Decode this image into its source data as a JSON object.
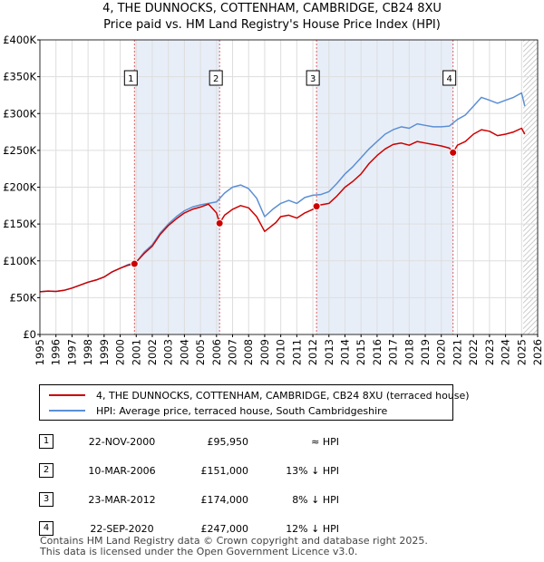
{
  "title": {
    "line1": "4, THE DUNNOCKS, COTTENHAM, CAMBRIDGE, CB24 8XU",
    "line2": "Price paid vs. HM Land Registry's House Price Index (HPI)"
  },
  "colors": {
    "price_line": "#cc0000",
    "hpi_line": "#5b8fd4",
    "marker_line": "#e06060",
    "shade": "#e8eef8",
    "grid": "#dddddd"
  },
  "legend": {
    "price_label": "4, THE DUNNOCKS, COTTENHAM, CAMBRIDGE, CB24 8XU (terraced house)",
    "hpi_label": "HPI: Average price, terraced house, South Cambridgeshire"
  },
  "sales": [
    {
      "num": "1",
      "date": "22-NOV-2000",
      "price": "£95,950",
      "hpi": "≈ HPI"
    },
    {
      "num": "2",
      "date": "10-MAR-2006",
      "price": "£151,000",
      "hpi": "13% ↓ HPI"
    },
    {
      "num": "3",
      "date": "23-MAR-2012",
      "price": "£174,000",
      "hpi": "8% ↓ HPI"
    },
    {
      "num": "4",
      "date": "22-SEP-2020",
      "price": "£247,000",
      "hpi": "12% ↓ HPI"
    }
  ],
  "footer": {
    "line1": "Contains HM Land Registry data © Crown copyright and database right 2025.",
    "line2": "This data is licensed under the Open Government Licence v3.0."
  },
  "chart_data": {
    "type": "line",
    "xlim": [
      1995,
      2026
    ],
    "ylim": [
      0,
      400000
    ],
    "x_ticks": [
      1995,
      1996,
      1997,
      1998,
      1999,
      2000,
      2001,
      2002,
      2003,
      2004,
      2005,
      2006,
      2007,
      2008,
      2009,
      2010,
      2011,
      2012,
      2013,
      2014,
      2015,
      2016,
      2017,
      2018,
      2019,
      2020,
      2021,
      2022,
      2023,
      2024,
      2025,
      2026
    ],
    "y_ticks": [
      {
        "value": 0,
        "label": "£0"
      },
      {
        "value": 50000,
        "label": "£50K"
      },
      {
        "value": 100000,
        "label": "£100K"
      },
      {
        "value": 150000,
        "label": "£150K"
      },
      {
        "value": 200000,
        "label": "£200K"
      },
      {
        "value": 250000,
        "label": "£250K"
      },
      {
        "value": 300000,
        "label": "£300K"
      },
      {
        "value": 350000,
        "label": "£350K"
      },
      {
        "value": 400000,
        "label": "£400K"
      }
    ],
    "shaded_ranges": [
      [
        2000.89,
        2006.19
      ],
      [
        2012.23,
        2020.73
      ]
    ],
    "future_hatch_from": 2025.1,
    "markers": [
      {
        "label": "1",
        "x": 2000.89,
        "y": 95950
      },
      {
        "label": "2",
        "x": 2006.19,
        "y": 151000
      },
      {
        "label": "3",
        "x": 2012.23,
        "y": 174000
      },
      {
        "label": "4",
        "x": 2020.73,
        "y": 247000
      }
    ],
    "series": [
      {
        "name": "4, THE DUNNOCKS, COTTENHAM, CAMBRIDGE, CB24 8XU (terraced house)",
        "color": "#cc0000",
        "x": [
          1995.0,
          1995.5,
          1996.0,
          1996.5,
          1997.0,
          1997.5,
          1998.0,
          1998.5,
          1999.0,
          1999.5,
          2000.0,
          2000.5,
          2000.89,
          2001.5,
          2002.0,
          2002.5,
          2003.0,
          2003.5,
          2004.0,
          2004.5,
          2005.0,
          2005.5,
          2006.0,
          2006.19,
          2006.5,
          2007.0,
          2007.5,
          2008.0,
          2008.5,
          2009.0,
          2009.3,
          2009.7,
          2010.0,
          2010.5,
          2011.0,
          2011.5,
          2012.0,
          2012.23,
          2012.5,
          2013.0,
          2013.5,
          2014.0,
          2014.5,
          2015.0,
          2015.5,
          2016.0,
          2016.5,
          2017.0,
          2017.5,
          2018.0,
          2018.5,
          2019.0,
          2019.5,
          2020.0,
          2020.5,
          2020.73,
          2021.0,
          2021.5,
          2022.0,
          2022.5,
          2023.0,
          2023.5,
          2024.0,
          2024.5,
          2025.0,
          2025.2
        ],
        "values": [
          58000,
          59000,
          58500,
          60000,
          63000,
          67000,
          71000,
          74000,
          78000,
          85000,
          90000,
          94000,
          95950,
          110000,
          120000,
          136000,
          148000,
          157000,
          165000,
          170000,
          173000,
          177000,
          165000,
          151000,
          162000,
          170000,
          175000,
          172000,
          160000,
          140000,
          145000,
          152000,
          160000,
          162000,
          158000,
          165000,
          170000,
          174000,
          176000,
          178000,
          188000,
          200000,
          208000,
          218000,
          232000,
          243000,
          252000,
          258000,
          260000,
          257000,
          262000,
          260000,
          258000,
          256000,
          253000,
          247000,
          257000,
          262000,
          272000,
          278000,
          276000,
          270000,
          272000,
          275000,
          280000,
          272000
        ]
      },
      {
        "name": "HPI: Average price, terraced house, South Cambridgeshire",
        "color": "#5b8fd4",
        "x": [
          1995.0,
          1995.5,
          1996.0,
          1996.5,
          1997.0,
          1997.5,
          1998.0,
          1998.5,
          1999.0,
          1999.5,
          2000.0,
          2000.5,
          2001.0,
          2001.5,
          2002.0,
          2002.5,
          2003.0,
          2003.5,
          2004.0,
          2004.5,
          2005.0,
          2005.5,
          2006.0,
          2006.5,
          2007.0,
          2007.5,
          2008.0,
          2008.5,
          2009.0,
          2009.5,
          2010.0,
          2010.5,
          2011.0,
          2011.5,
          2012.0,
          2012.5,
          2013.0,
          2013.5,
          2014.0,
          2014.5,
          2015.0,
          2015.5,
          2016.0,
          2016.5,
          2017.0,
          2017.5,
          2018.0,
          2018.5,
          2019.0,
          2019.5,
          2020.0,
          2020.5,
          2021.0,
          2021.5,
          2022.0,
          2022.5,
          2023.0,
          2023.5,
          2024.0,
          2024.5,
          2025.0,
          2025.2
        ],
        "values": [
          58000,
          59000,
          58500,
          60000,
          63000,
          67000,
          71000,
          74000,
          78000,
          85000,
          90000,
          95000,
          98000,
          112000,
          122000,
          138000,
          150000,
          160000,
          168000,
          173000,
          176000,
          178000,
          180000,
          192000,
          200000,
          203000,
          198000,
          185000,
          160000,
          170000,
          178000,
          182000,
          178000,
          186000,
          189000,
          190000,
          194000,
          205000,
          218000,
          228000,
          240000,
          252000,
          262000,
          272000,
          278000,
          282000,
          280000,
          286000,
          284000,
          282000,
          282000,
          283000,
          292000,
          298000,
          310000,
          322000,
          318000,
          314000,
          318000,
          322000,
          328000,
          310000
        ]
      }
    ]
  }
}
